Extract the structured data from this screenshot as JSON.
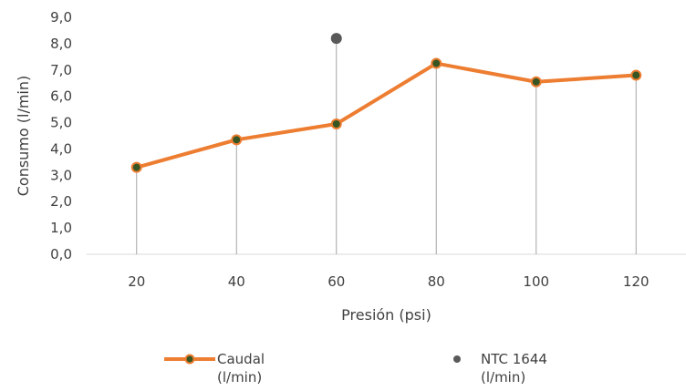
{
  "chart_data": {
    "type": "line",
    "x": [
      20,
      40,
      60,
      80,
      100,
      120
    ],
    "x_ticks": [
      "20",
      "40",
      "60",
      "80",
      "100",
      "120"
    ],
    "y_ticks": [
      "0,0",
      "1,0",
      "2,0",
      "3,0",
      "4,0",
      "5,0",
      "6,0",
      "7,0",
      "8,0",
      "9,0"
    ],
    "ylim": [
      0,
      9
    ],
    "xlabel": "Presión (psi)",
    "ylabel": "Consumo (l/min)",
    "grid": false,
    "drop_lines": true,
    "legend_position": "bottom",
    "series": [
      {
        "name_line1": "Caudal",
        "name_line2": "(l/min)",
        "style": "line-markers",
        "color": "#ED7D31",
        "marker_color": "#375623",
        "values": [
          3.3,
          4.35,
          4.95,
          7.25,
          6.55,
          6.8
        ]
      },
      {
        "name_line1": "NTC 1644",
        "name_line2": "(l/min)",
        "style": "points",
        "color": "#595959",
        "points": [
          {
            "x": 60,
            "y": 8.2
          }
        ]
      }
    ]
  }
}
